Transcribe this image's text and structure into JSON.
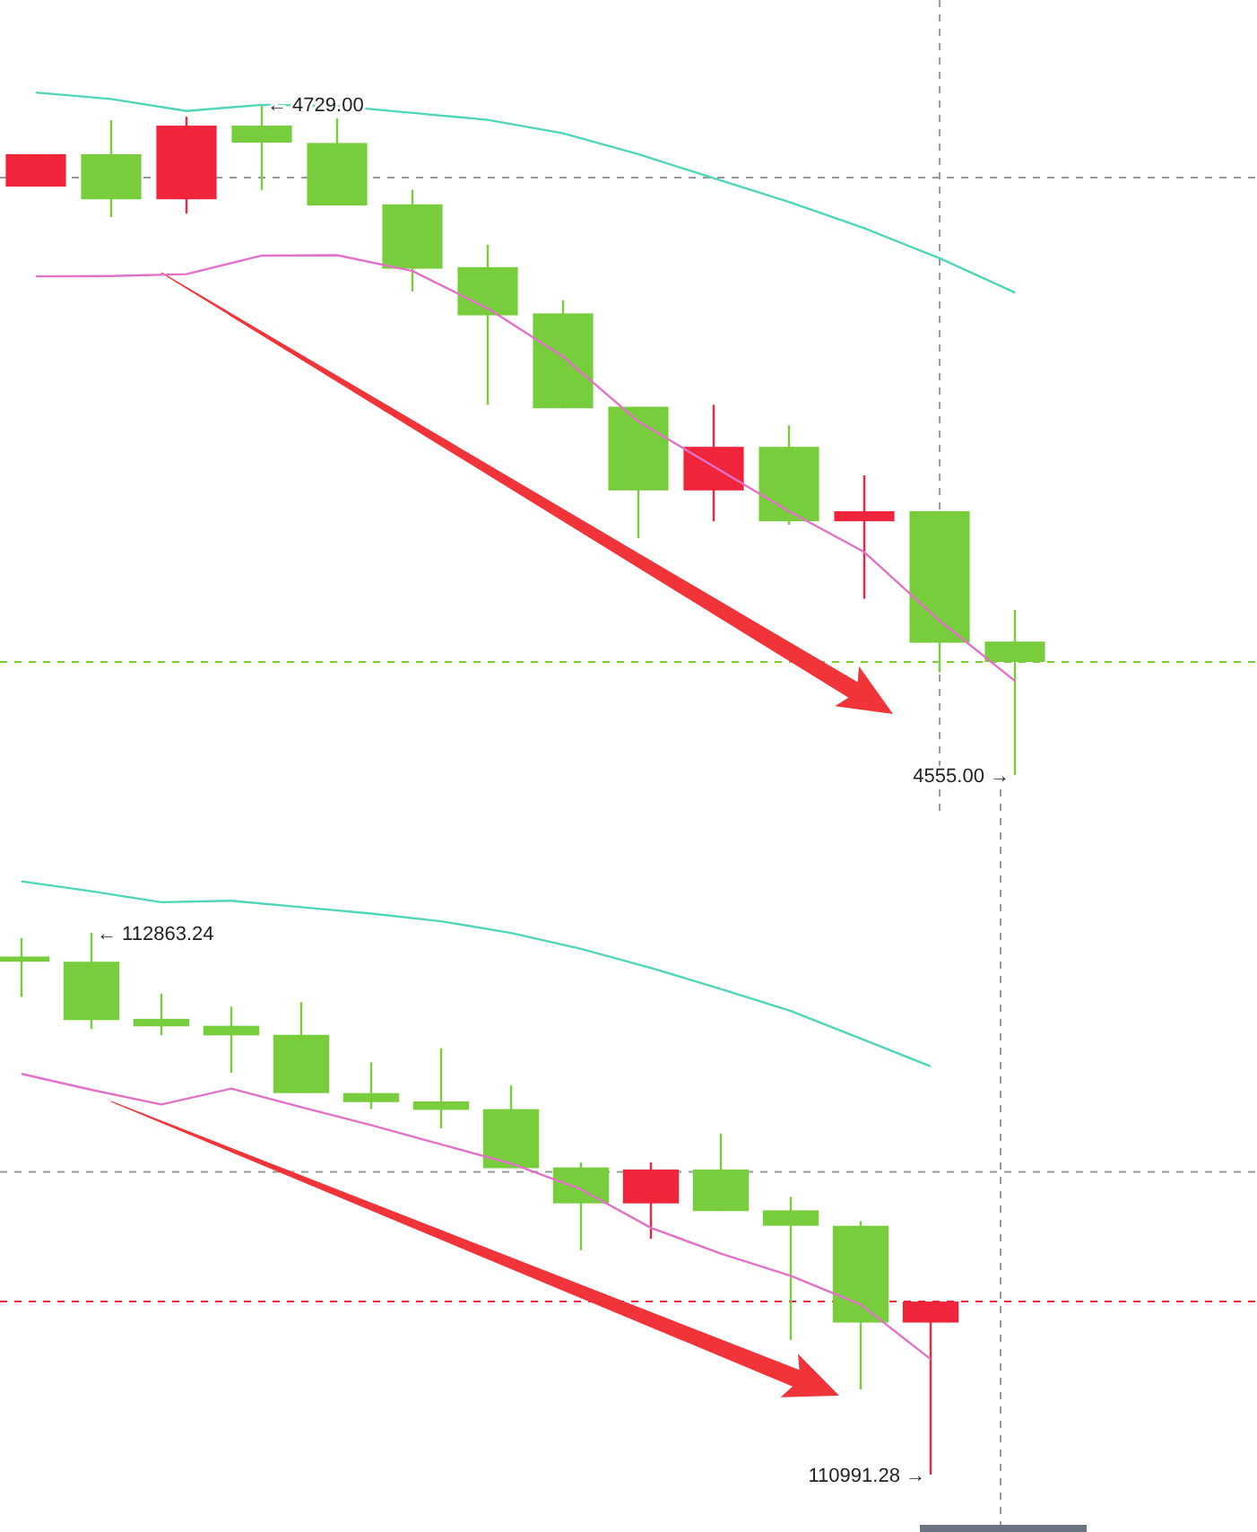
{
  "chart_data": [
    {
      "type": "candlestick",
      "categories": [
        null,
        null,
        null,
        null,
        null,
        null,
        null,
        null,
        null,
        null,
        null,
        null,
        null,
        null
      ],
      "ohlc": [
        [
          4707.6,
          4716.0,
          4707.6,
          4716.0
        ],
        [
          4716.0,
          4724.8,
          4699.7,
          4704.3
        ],
        [
          4704.3,
          4725.7,
          4700.6,
          4723.4
        ],
        [
          4723.4,
          4729.0,
          4706.7,
          4719.0
        ],
        [
          4718.9,
          4725.3,
          4702.7,
          4702.7
        ],
        [
          4703.0,
          4706.8,
          4680.4,
          4686.3
        ],
        [
          4686.7,
          4692.5,
          4651.0,
          4674.2
        ],
        [
          4674.7,
          4678.1,
          4650.1,
          4650.1
        ],
        [
          4650.5,
          4650.5,
          4616.4,
          4628.8
        ],
        [
          4628.8,
          4651.0,
          4620.8,
          4640.1
        ],
        [
          4640.1,
          4645.7,
          4619.9,
          4620.8
        ],
        [
          4620.8,
          4632.7,
          4600.7,
          4623.4
        ],
        [
          4623.4,
          4623.4,
          4581.6,
          4589.3
        ],
        [
          4589.6,
          4597.8,
          4555.0,
          4584.3
        ]
      ],
      "colors": [
        "#f0243a",
        "#77cd3c",
        "#f0243a",
        "#77cd3c",
        "#77cd3c",
        "#77cd3c",
        "#77cd3c",
        "#77cd3c",
        "#77cd3c",
        "#f0243a",
        "#77cd3c",
        "#f0243a",
        "#77cd3c",
        "#77cd3c"
      ],
      "series": [
        {
          "type": "line",
          "color": "#4fd6b8",
          "values": [
            4732.0,
            4730.3,
            4727.2,
            4728.8,
            4728.5,
            4726.7,
            4724.9,
            4721.4,
            4716.0,
            4709.8,
            4703.6,
            4696.8,
            4689.0,
            4680.1
          ]
        },
        {
          "type": "line",
          "color": "#e371c8",
          "values": [
            4684.3,
            4684.4,
            4684.9,
            4689.7,
            4689.8,
            4685.7,
            4676.0,
            4663.5,
            4646.7,
            4635.0,
            4623.4,
            4612.8,
            4595.0,
            4579.4
          ]
        }
      ],
      "ref_lines": [
        {
          "axis": "y",
          "value": 4709.9,
          "color": "#999999",
          "line_style": "dashed"
        },
        {
          "axis": "y",
          "value": 4584.3,
          "color": "#77cd3c",
          "line_style": "dashed"
        }
      ],
      "annotations": [
        "← 4729.00",
        "4555.00 →"
      ]
    },
    {
      "type": "candlestick",
      "categories": [
        null,
        null,
        null,
        null,
        null,
        null,
        null,
        null,
        null,
        null,
        null,
        null,
        null,
        null
      ],
      "ohlc": [
        [
          112781.4,
          112845.3,
          112641.8,
          112763.4
        ],
        [
          112763.4,
          112863.24,
          112530.8,
          112561.8
        ],
        [
          112566.1,
          112653.0,
          112509.0,
          112540.1
        ],
        [
          112542.0,
          112608.3,
          112380.0,
          112509.0
        ],
        [
          112510.9,
          112623.8,
          112309.4,
          112309.4
        ],
        [
          112309.4,
          112416.0,
          112254.1,
          112278.3
        ],
        [
          112280.8,
          112464.4,
          112187.8,
          112251.6
        ],
        [
          112254.1,
          112336.0,
          112050.0,
          112050.0
        ],
        [
          112052.5,
          112069.9,
          111766.6,
          111928.4
        ],
        [
          111928.4,
          112069.9,
          111806.3,
          112045.6
        ],
        [
          112045.6,
          112169.8,
          111901.8,
          111901.8
        ],
        [
          111904.3,
          111950.8,
          111456.5,
          111851.0
        ],
        [
          111851.0,
          111866.5,
          111285.9,
          111516.6
        ],
        [
          111516.6,
          111589.2,
          110991.28,
          111589.2
        ]
      ],
      "colors": [
        "#77cd3c",
        "#77cd3c",
        "#77cd3c",
        "#77cd3c",
        "#77cd3c",
        "#77cd3c",
        "#77cd3c",
        "#77cd3c",
        "#77cd3c",
        "#f0243a",
        "#77cd3c",
        "#77cd3c",
        "#77cd3c",
        "#f0243a"
      ],
      "series": [
        {
          "type": "line",
          "color": "#4fd6b8",
          "values": [
            113041,
            113007,
            112969,
            112974,
            112952,
            112930,
            112903,
            112863,
            112808,
            112742,
            112669,
            112593,
            112498,
            112402
          ]
        },
        {
          "type": "line",
          "color": "#e371c8",
          "values": [
            112376,
            112321,
            112270,
            112325,
            112261,
            112199,
            112132,
            112066,
            111977,
            111844,
            111755,
            111678,
            111579,
            111390
          ]
        }
      ],
      "ref_lines": [
        {
          "axis": "y",
          "value": 112037.0,
          "color": "#999999",
          "line_style": "dashed"
        },
        {
          "axis": "y",
          "value": 111589.2,
          "color": "#f0243a",
          "line_style": "dashed"
        }
      ],
      "annotations": [
        "← 112863.24",
        "110991.28 →"
      ]
    }
  ]
}
